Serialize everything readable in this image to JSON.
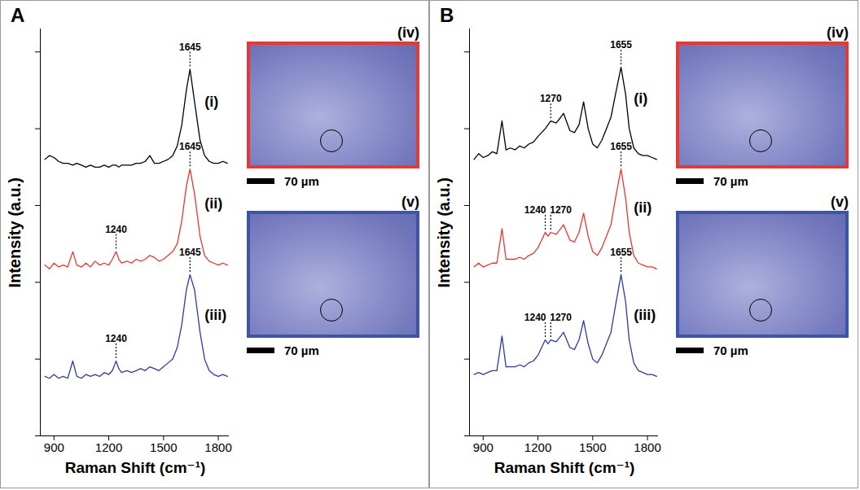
{
  "chart_data": [
    {
      "type": "line",
      "panel": "A",
      "x_label": "Raman Shift (cm⁻¹)",
      "y_label": "Intensity (a.u.)",
      "xlim": [
        825,
        1860
      ],
      "xticks": [
        900,
        1200,
        1500,
        1800
      ],
      "ylim": [
        0,
        10.6
      ],
      "yticks": [
        0,
        2,
        4,
        6,
        8,
        10
      ],
      "tick_labels": "x",
      "grid": false,
      "x": [
        850,
        875,
        900,
        925,
        950,
        975,
        1003,
        1025,
        1050,
        1075,
        1100,
        1125,
        1150,
        1175,
        1200,
        1220,
        1240,
        1255,
        1270,
        1300,
        1325,
        1350,
        1375,
        1400,
        1425,
        1450,
        1475,
        1500,
        1525,
        1550,
        1575,
        1600,
        1625,
        1645,
        1670,
        1700,
        1725,
        1750,
        1775,
        1800,
        1825,
        1850
      ],
      "series": [
        {
          "name": "(i)",
          "color": "#000000",
          "values": [
            7.2,
            7.3,
            7.25,
            7.15,
            7.1,
            7.1,
            7.05,
            7.1,
            7.05,
            7.0,
            7.05,
            7.0,
            7.0,
            7.05,
            7.0,
            7.05,
            7.05,
            7.0,
            7.05,
            7.05,
            7.05,
            7.1,
            7.1,
            7.15,
            7.3,
            7.1,
            7.1,
            7.15,
            7.2,
            7.3,
            7.55,
            8.1,
            9.0,
            9.55,
            8.7,
            7.7,
            7.3,
            7.15,
            7.1,
            7.1,
            7.15,
            7.1
          ]
        },
        {
          "name": "(ii)",
          "color": "#e8372f",
          "values": [
            4.45,
            4.35,
            4.5,
            4.4,
            4.45,
            4.4,
            4.8,
            4.45,
            4.4,
            4.5,
            4.4,
            4.55,
            4.45,
            4.5,
            4.45,
            4.6,
            4.8,
            4.6,
            4.5,
            4.55,
            4.5,
            4.6,
            4.55,
            4.6,
            4.7,
            4.65,
            4.55,
            4.6,
            4.7,
            4.8,
            5.0,
            5.6,
            6.5,
            6.95,
            6.3,
            5.2,
            4.7,
            4.55,
            4.5,
            4.45,
            4.5,
            4.45
          ]
        },
        {
          "name": "(iii)",
          "color": "#2e3c9e",
          "values": [
            1.55,
            1.5,
            1.6,
            1.5,
            1.55,
            1.5,
            1.95,
            1.55,
            1.5,
            1.6,
            1.55,
            1.6,
            1.55,
            1.65,
            1.6,
            1.7,
            1.95,
            1.75,
            1.65,
            1.7,
            1.65,
            1.7,
            1.75,
            1.7,
            1.8,
            1.75,
            1.7,
            1.8,
            1.9,
            2.0,
            2.3,
            2.9,
            3.8,
            4.2,
            3.8,
            2.7,
            2.0,
            1.7,
            1.6,
            1.55,
            1.6,
            1.55
          ]
        }
      ],
      "annotations": [
        {
          "text": "1645",
          "x": 1645,
          "series": "(i)"
        },
        {
          "text": "1645",
          "x": 1645,
          "series": "(ii)"
        },
        {
          "text": "1240",
          "x": 1240,
          "series": "(ii)"
        },
        {
          "text": "1645",
          "x": 1645,
          "series": "(iii)"
        },
        {
          "text": "1240",
          "x": 1240,
          "series": "(iii)"
        }
      ],
      "images": [
        {
          "label": "(iv)",
          "color": "#e53935",
          "scale_bar": "70 µm"
        },
        {
          "label": "(v)",
          "color": "#3b55a8",
          "scale_bar": "70 µm"
        }
      ]
    },
    {
      "type": "line",
      "panel": "B",
      "x_label": "Raman Shift (cm⁻¹)",
      "y_label": "Intensity (a.u.)",
      "xlim": [
        825,
        1860
      ],
      "xticks": [
        900,
        1200,
        1500,
        1800
      ],
      "ylim": [
        0,
        10.6
      ],
      "yticks": [
        0,
        2,
        4,
        6,
        8,
        10
      ],
      "tick_labels": "x",
      "grid": false,
      "x": [
        850,
        875,
        900,
        925,
        950,
        975,
        1003,
        1025,
        1050,
        1075,
        1100,
        1125,
        1150,
        1175,
        1200,
        1220,
        1240,
        1255,
        1270,
        1300,
        1325,
        1340,
        1375,
        1400,
        1425,
        1450,
        1475,
        1500,
        1525,
        1550,
        1575,
        1600,
        1625,
        1655,
        1680,
        1700,
        1725,
        1750,
        1775,
        1800,
        1825,
        1850
      ],
      "series": [
        {
          "name": "(i)",
          "color": "#000000",
          "values": [
            7.2,
            7.35,
            7.25,
            7.3,
            7.4,
            7.35,
            8.2,
            7.45,
            7.5,
            7.45,
            7.55,
            7.5,
            7.6,
            7.65,
            7.8,
            7.9,
            8.0,
            8.1,
            8.2,
            8.15,
            8.3,
            8.4,
            7.95,
            7.9,
            8.1,
            8.7,
            8.0,
            7.6,
            7.5,
            7.7,
            8.0,
            8.3,
            8.9,
            9.6,
            8.9,
            8.0,
            7.5,
            7.35,
            7.3,
            7.3,
            7.25,
            7.2
          ]
        },
        {
          "name": "(ii)",
          "color": "#e8372f",
          "values": [
            4.4,
            4.5,
            4.4,
            4.45,
            4.5,
            4.5,
            5.4,
            4.6,
            4.6,
            4.6,
            4.65,
            4.6,
            4.7,
            4.75,
            4.9,
            5.1,
            5.3,
            5.2,
            5.3,
            5.25,
            5.4,
            5.5,
            5.1,
            5.05,
            5.3,
            5.8,
            5.2,
            4.8,
            4.7,
            4.9,
            5.2,
            5.5,
            6.2,
            6.95,
            6.2,
            5.3,
            4.7,
            4.5,
            4.45,
            4.4,
            4.4,
            4.35
          ]
        },
        {
          "name": "(iii)",
          "color": "#2e3c9e",
          "values": [
            1.6,
            1.65,
            1.6,
            1.65,
            1.7,
            1.7,
            2.6,
            1.8,
            1.8,
            1.8,
            1.85,
            1.8,
            1.9,
            1.95,
            2.1,
            2.3,
            2.5,
            2.4,
            2.5,
            2.45,
            2.6,
            2.7,
            2.3,
            2.25,
            2.5,
            3.0,
            2.4,
            2.0,
            1.9,
            2.1,
            2.4,
            2.7,
            3.4,
            4.2,
            3.5,
            2.5,
            1.9,
            1.7,
            1.65,
            1.6,
            1.6,
            1.55
          ]
        }
      ],
      "annotations": [
        {
          "text": "1655",
          "x": 1655,
          "series": "(i)"
        },
        {
          "text": "1270",
          "x": 1270,
          "series": "(i)"
        },
        {
          "text": "1655",
          "x": 1655,
          "series": "(ii)"
        },
        {
          "text": "1240",
          "x": 1240,
          "series": "(ii)"
        },
        {
          "text": "1270",
          "x": 1270,
          "series": "(ii)"
        },
        {
          "text": "1655",
          "x": 1655,
          "series": "(iii)"
        },
        {
          "text": "1240",
          "x": 1240,
          "series": "(iii)"
        },
        {
          "text": "1270",
          "x": 1270,
          "series": "(iii)"
        }
      ],
      "images": [
        {
          "label": "(iv)",
          "color": "#e53935",
          "scale_bar": "70 µm"
        },
        {
          "label": "(v)",
          "color": "#3b55a8",
          "scale_bar": "70 µm"
        }
      ]
    }
  ]
}
